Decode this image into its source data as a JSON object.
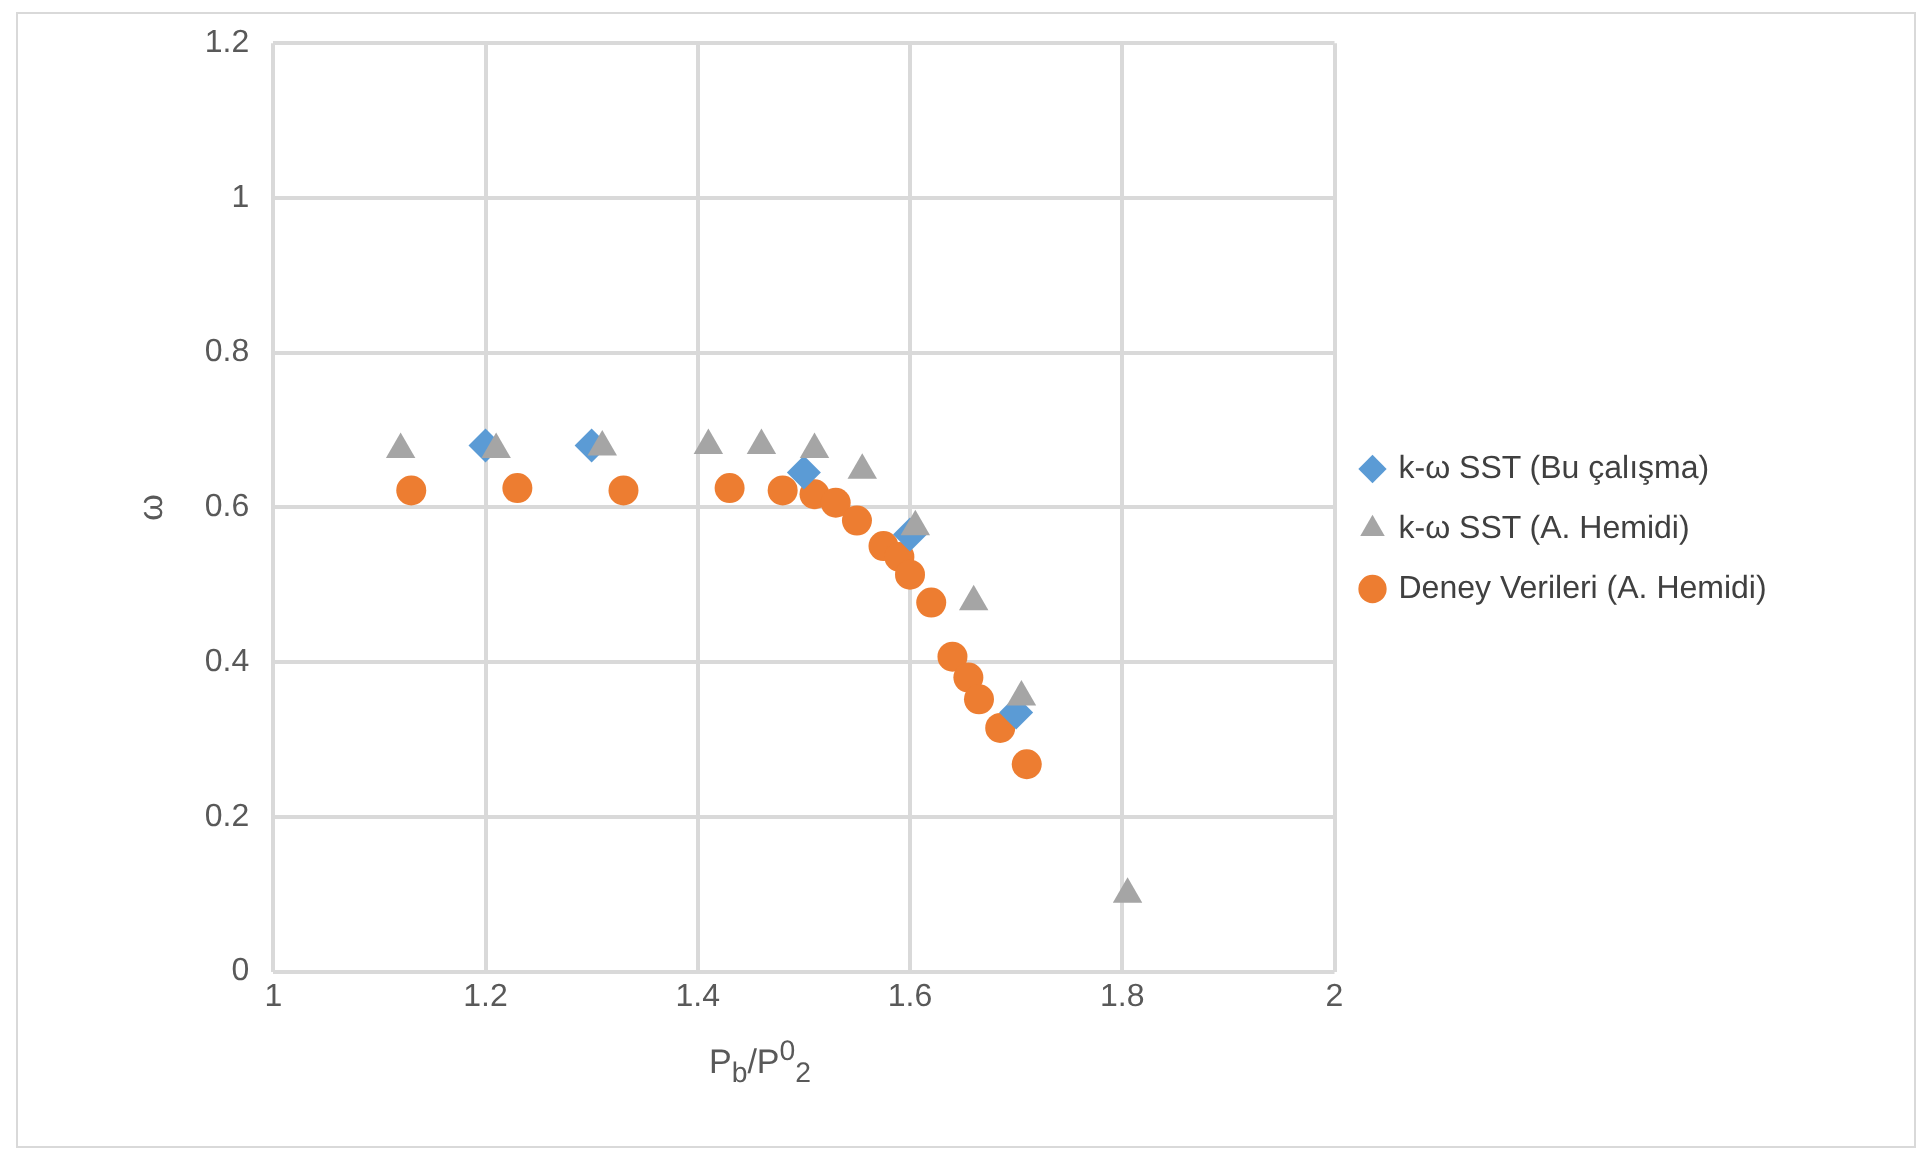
{
  "chart_data": {
    "type": "scatter",
    "xlabel": "P$_{b}$/P$^{0}$$_{2}$",
    "ylabel": "ω",
    "xlim": [
      1,
      2
    ],
    "xticks": [
      1,
      1.2,
      1.4,
      1.6,
      1.8,
      2
    ],
    "ylim": [
      0,
      1.2
    ],
    "yticks": [
      0,
      0.2,
      0.4,
      0.6,
      0.8,
      1,
      1.2
    ],
    "grid": true,
    "legend": "right",
    "series": [
      {
        "name": "k-ω SST (Bu çalışma)",
        "color": "#5b9bd5",
        "marker": "diamond",
        "x": [
          1.2,
          1.3,
          1.5,
          1.6,
          1.7
        ],
        "values": [
          0.68,
          0.68,
          0.645,
          0.565,
          0.335
        ]
      },
      {
        "name": "k-ω SST (A. Hemidi)",
        "color": "#a5a5a5",
        "marker": "triangle",
        "x": [
          1.12,
          1.21,
          1.31,
          1.41,
          1.46,
          1.51,
          1.555,
          1.605,
          1.66,
          1.705,
          1.805
        ],
        "values": [
          0.675,
          0.675,
          0.678,
          0.68,
          0.68,
          0.675,
          0.648,
          0.575,
          0.478,
          0.355,
          0.1
        ]
      },
      {
        "name": "Deney Verileri (A. Hemidi)",
        "color": "#ed7d31",
        "marker": "circle",
        "x": [
          1.13,
          1.23,
          1.33,
          1.43,
          1.48,
          1.51,
          1.53,
          1.55,
          1.575,
          1.59,
          1.6,
          1.62,
          1.64,
          1.655,
          1.665,
          1.685,
          1.71
        ],
        "values": [
          0.622,
          0.625,
          0.622,
          0.625,
          0.622,
          0.617,
          0.606,
          0.583,
          0.55,
          0.536,
          0.513,
          0.477,
          0.407,
          0.38,
          0.352,
          0.315,
          0.268
        ]
      }
    ]
  }
}
